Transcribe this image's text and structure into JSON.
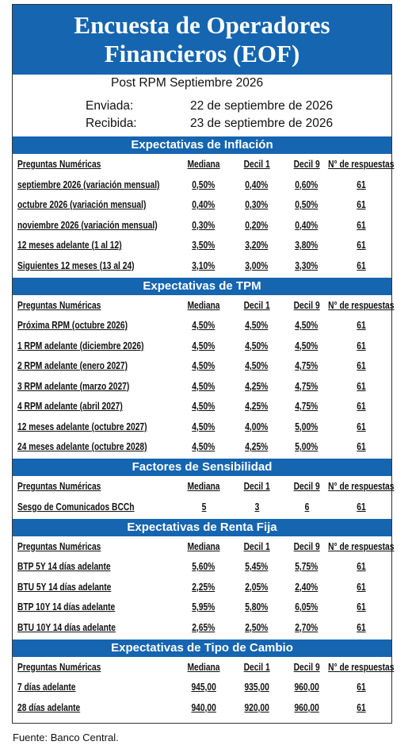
{
  "header": {
    "title_lines": [
      "Encuesta de Operadores",
      "Financieros (EOF)"
    ],
    "subtitle": "Post RPM Septiembre 2026",
    "dates": [
      {
        "label": "Enviada:",
        "value": "22 de septiembre de 2026"
      },
      {
        "label": "Recibida:",
        "value": "23 de septiembre de 2026"
      }
    ]
  },
  "sections": [
    {
      "title": "Expectativas de Inflación",
      "columns": [
        "Preguntas Numéricas",
        "Mediana",
        "Decil 1",
        "Decil 9",
        "N° de respuestas"
      ],
      "rows": [
        [
          "septiembre 2026 (variación mensual)",
          "0,50%",
          "0,40%",
          "0,60%",
          "61"
        ],
        [
          "octubre 2026 (variación mensual)",
          "0,40%",
          "0,30%",
          "0,50%",
          "61"
        ],
        [
          "noviembre 2026 (variación mensual)",
          "0,30%",
          "0,20%",
          "0,40%",
          "61"
        ],
        [
          "12 meses adelante (1 al 12)",
          "3,50%",
          "3,20%",
          "3,80%",
          "61"
        ],
        [
          "Siguientes 12 meses (13 al 24)",
          "3,10%",
          "3,00%",
          "3,30%",
          "61"
        ]
      ]
    },
    {
      "title": "Expectativas de TPM",
      "columns": [
        "Preguntas Numéricas",
        "Mediana",
        "Decil 1",
        "Decil 9",
        "N° de respuestas"
      ],
      "rows": [
        [
          "Próxima RPM (octubre 2026)",
          "4,50%",
          "4,50%",
          "4,50%",
          "61"
        ],
        [
          "1 RPM adelante (diciembre 2026)",
          "4,50%",
          "4,50%",
          "4,50%",
          "61"
        ],
        [
          "2 RPM adelante (enero 2027)",
          "4,50%",
          "4,50%",
          "4,75%",
          "61"
        ],
        [
          "3 RPM adelante (marzo 2027)",
          "4,50%",
          "4,25%",
          "4,75%",
          "61"
        ],
        [
          "4 RPM adelante (abril 2027)",
          "4,50%",
          "4,25%",
          "4,75%",
          "61"
        ],
        [
          "12 meses adelante (octubre 2027)",
          "4,50%",
          "4,00%",
          "5,00%",
          "61"
        ],
        [
          "24 meses adelante (octubre 2028)",
          "4,50%",
          "4,25%",
          "5,00%",
          "61"
        ]
      ]
    },
    {
      "title": "Factores de Sensibilidad",
      "columns": [
        "Preguntas Numéricas",
        "Mediana",
        "Decil 1",
        "Decil 9",
        "N° de respuestas"
      ],
      "rows": [
        [
          "Sesgo de Comunicados BCCh",
          "5",
          "3",
          "6",
          "61"
        ]
      ]
    },
    {
      "title": "Expectativas  de Renta Fija",
      "columns": [
        "Preguntas Numéricas",
        "Mediana",
        "Decil 1",
        "Decil 9",
        "N° de respuestas"
      ],
      "rows": [
        [
          "BTP 5Y 14 días adelante",
          "5,60%",
          "5,45%",
          "5,75%",
          "61"
        ],
        [
          "BTU 5Y 14 días adelante",
          "2,25%",
          "2,05%",
          "2,40%",
          "61"
        ],
        [
          "BTP 10Y 14 días adelante",
          "5,95%",
          "5,80%",
          "6,05%",
          "61"
        ],
        [
          "BTU 10Y 14 días adelante",
          "2,65%",
          "2,50%",
          "2,70%",
          "61"
        ]
      ]
    },
    {
      "title": "Expectativas  de Tipo de Cambio",
      "columns": [
        "Preguntas Numéricas",
        "Mediana",
        "Decil 1",
        "Decil 9",
        "N° de respuestas"
      ],
      "rows": [
        [
          "7 días adelante",
          "945,00",
          "935,00",
          "960,00",
          "61"
        ],
        [
          "28 días adelante",
          "940,00",
          "920,00",
          "960,00",
          "61"
        ]
      ]
    }
  ],
  "footer": "Fuente: Banco Central."
}
